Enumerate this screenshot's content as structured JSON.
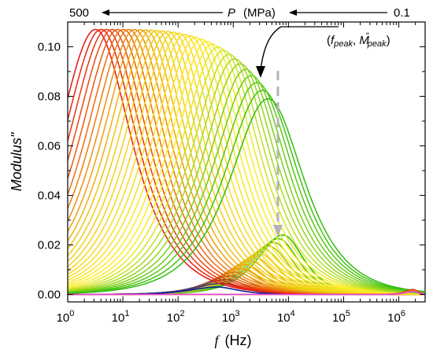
{
  "chart_data": {
    "type": "line",
    "title": "",
    "xlabel": "f",
    "xlabel_unit": "(Hz)",
    "ylabel": "Modulus\"",
    "xscale": "log",
    "xlim": [
      1,
      3000000
    ],
    "ylim": [
      -0.003,
      0.11
    ],
    "grid": false,
    "x_tick_labels": [
      {
        "base": "10",
        "exp": "0"
      },
      {
        "base": "10",
        "exp": "1"
      },
      {
        "base": "10",
        "exp": "2"
      },
      {
        "base": "10",
        "exp": "3"
      },
      {
        "base": "10",
        "exp": "4"
      },
      {
        "base": "10",
        "exp": "5"
      },
      {
        "base": "10",
        "exp": "6"
      }
    ],
    "y_ticks": [
      0.0,
      0.02,
      0.04,
      0.06,
      0.08,
      0.1
    ],
    "y_tick_labels": [
      "0.00",
      "0.02",
      "0.04",
      "0.06",
      "0.08",
      "0.10"
    ],
    "pressure_axis": {
      "label_symbol": "P",
      "label_unit": "(MPa)",
      "left_value": "500",
      "right_value": "0.1",
      "direction": "right-to-left"
    },
    "annotation": {
      "text_open": "(",
      "f_symbol": "f",
      "f_sub": "peak",
      "sep": ", ",
      "m_symbol": "M",
      "m_sup": "\"",
      "m_sub": "peak",
      "text_close": ")"
    },
    "main_peaks": {
      "count": 32,
      "colormap": "red (P = 500 MPa) → orange → yellow → green (P = 0.1 MPa)",
      "first": {
        "fpeak_hz": 3.2,
        "mpeak": 0.107
      },
      "last": {
        "fpeak_hz": 4300,
        "mpeak": 0.079
      },
      "colors": [
        "#e8120f",
        "#f0c810",
        "#ffef2a",
        "#2fbd10"
      ]
    },
    "secondary_peaks": {
      "count": 15,
      "colormap": "green (low P) → yellow → orange → dark blue (high P)",
      "first": {
        "fpeak_hz": 8000,
        "mpeak": 0.024
      },
      "last": {
        "fpeak_hz": 500,
        "mpeak": 0.003
      },
      "colors": [
        "#2fbd10",
        "#e8d020",
        "#f08a10",
        "#0a1f9a"
      ]
    },
    "high_frequency_feature": {
      "f_hz": 1800000,
      "m": 0.002,
      "colors": [
        "#e8120f",
        "#f08a10",
        "#e040e0"
      ]
    }
  }
}
